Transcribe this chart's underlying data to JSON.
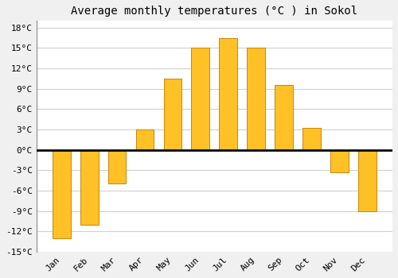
{
  "title": "Average monthly temperatures (°C ) in Sokol",
  "months": [
    "Jan",
    "Feb",
    "Mar",
    "Apr",
    "May",
    "Jun",
    "Jul",
    "Aug",
    "Sep",
    "Oct",
    "Nov",
    "Dec"
  ],
  "values": [
    -13,
    -11,
    -5,
    3,
    10.5,
    15,
    16.5,
    15,
    9.5,
    3.2,
    -3.3,
    -9
  ],
  "bar_color": "#FFC125",
  "bar_edge_color": "#C8860A",
  "ylim": [
    -15,
    19
  ],
  "yticks": [
    -15,
    -12,
    -9,
    -6,
    -3,
    0,
    3,
    6,
    9,
    12,
    15,
    18
  ],
  "plot_bg_color": "#ffffff",
  "fig_bg_color": "#f0f0f0",
  "grid_color": "#d0d0d0",
  "zero_line_color": "#000000",
  "title_fontsize": 10,
  "tick_fontsize": 8,
  "bar_width": 0.65
}
